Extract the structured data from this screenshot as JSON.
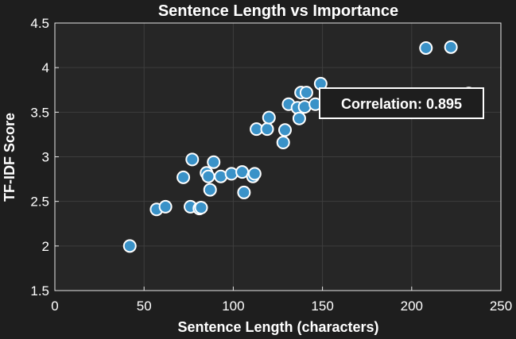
{
  "chart_data": {
    "type": "scatter",
    "title": "Sentence Length vs Importance",
    "xlabel": "Sentence Length (characters)",
    "ylabel": "TF-IDF Score",
    "xlim": [
      0,
      250
    ],
    "ylim": [
      1.5,
      4.5
    ],
    "xticks": [
      0,
      50,
      100,
      150,
      200,
      250
    ],
    "yticks": [
      1.5,
      2,
      2.5,
      3,
      3.5,
      4,
      4.5
    ],
    "grid": true,
    "annotation": "Correlation: 0.895",
    "colors": {
      "background": "#1e1e1e",
      "axes_background": "#262626",
      "point_fill": "#3a92c8",
      "point_edge": "#ffffff",
      "annotation_box": "#1e1e1e",
      "annotation_border": "#ffffff"
    },
    "points": [
      {
        "x": 42,
        "y": 2.0
      },
      {
        "x": 57,
        "y": 2.41
      },
      {
        "x": 62,
        "y": 2.44
      },
      {
        "x": 72,
        "y": 2.77
      },
      {
        "x": 76,
        "y": 2.44
      },
      {
        "x": 77,
        "y": 2.97
      },
      {
        "x": 81,
        "y": 2.42
      },
      {
        "x": 82,
        "y": 2.43
      },
      {
        "x": 85,
        "y": 2.82
      },
      {
        "x": 86,
        "y": 2.78
      },
      {
        "x": 87,
        "y": 2.63
      },
      {
        "x": 89,
        "y": 2.94
      },
      {
        "x": 93,
        "y": 2.78
      },
      {
        "x": 99,
        "y": 2.81
      },
      {
        "x": 105,
        "y": 2.83
      },
      {
        "x": 106,
        "y": 2.6
      },
      {
        "x": 111,
        "y": 2.78
      },
      {
        "x": 112,
        "y": 2.81
      },
      {
        "x": 113,
        "y": 3.31
      },
      {
        "x": 119,
        "y": 3.31
      },
      {
        "x": 120,
        "y": 3.44
      },
      {
        "x": 128,
        "y": 3.16
      },
      {
        "x": 129,
        "y": 3.3
      },
      {
        "x": 131,
        "y": 3.59
      },
      {
        "x": 136,
        "y": 3.55
      },
      {
        "x": 137,
        "y": 3.43
      },
      {
        "x": 138,
        "y": 3.72
      },
      {
        "x": 140,
        "y": 3.56
      },
      {
        "x": 141,
        "y": 3.72
      },
      {
        "x": 146,
        "y": 3.59
      },
      {
        "x": 149,
        "y": 3.82
      },
      {
        "x": 208,
        "y": 4.22
      },
      {
        "x": 222,
        "y": 4.23
      },
      {
        "x": 232,
        "y": 3.71
      }
    ]
  }
}
